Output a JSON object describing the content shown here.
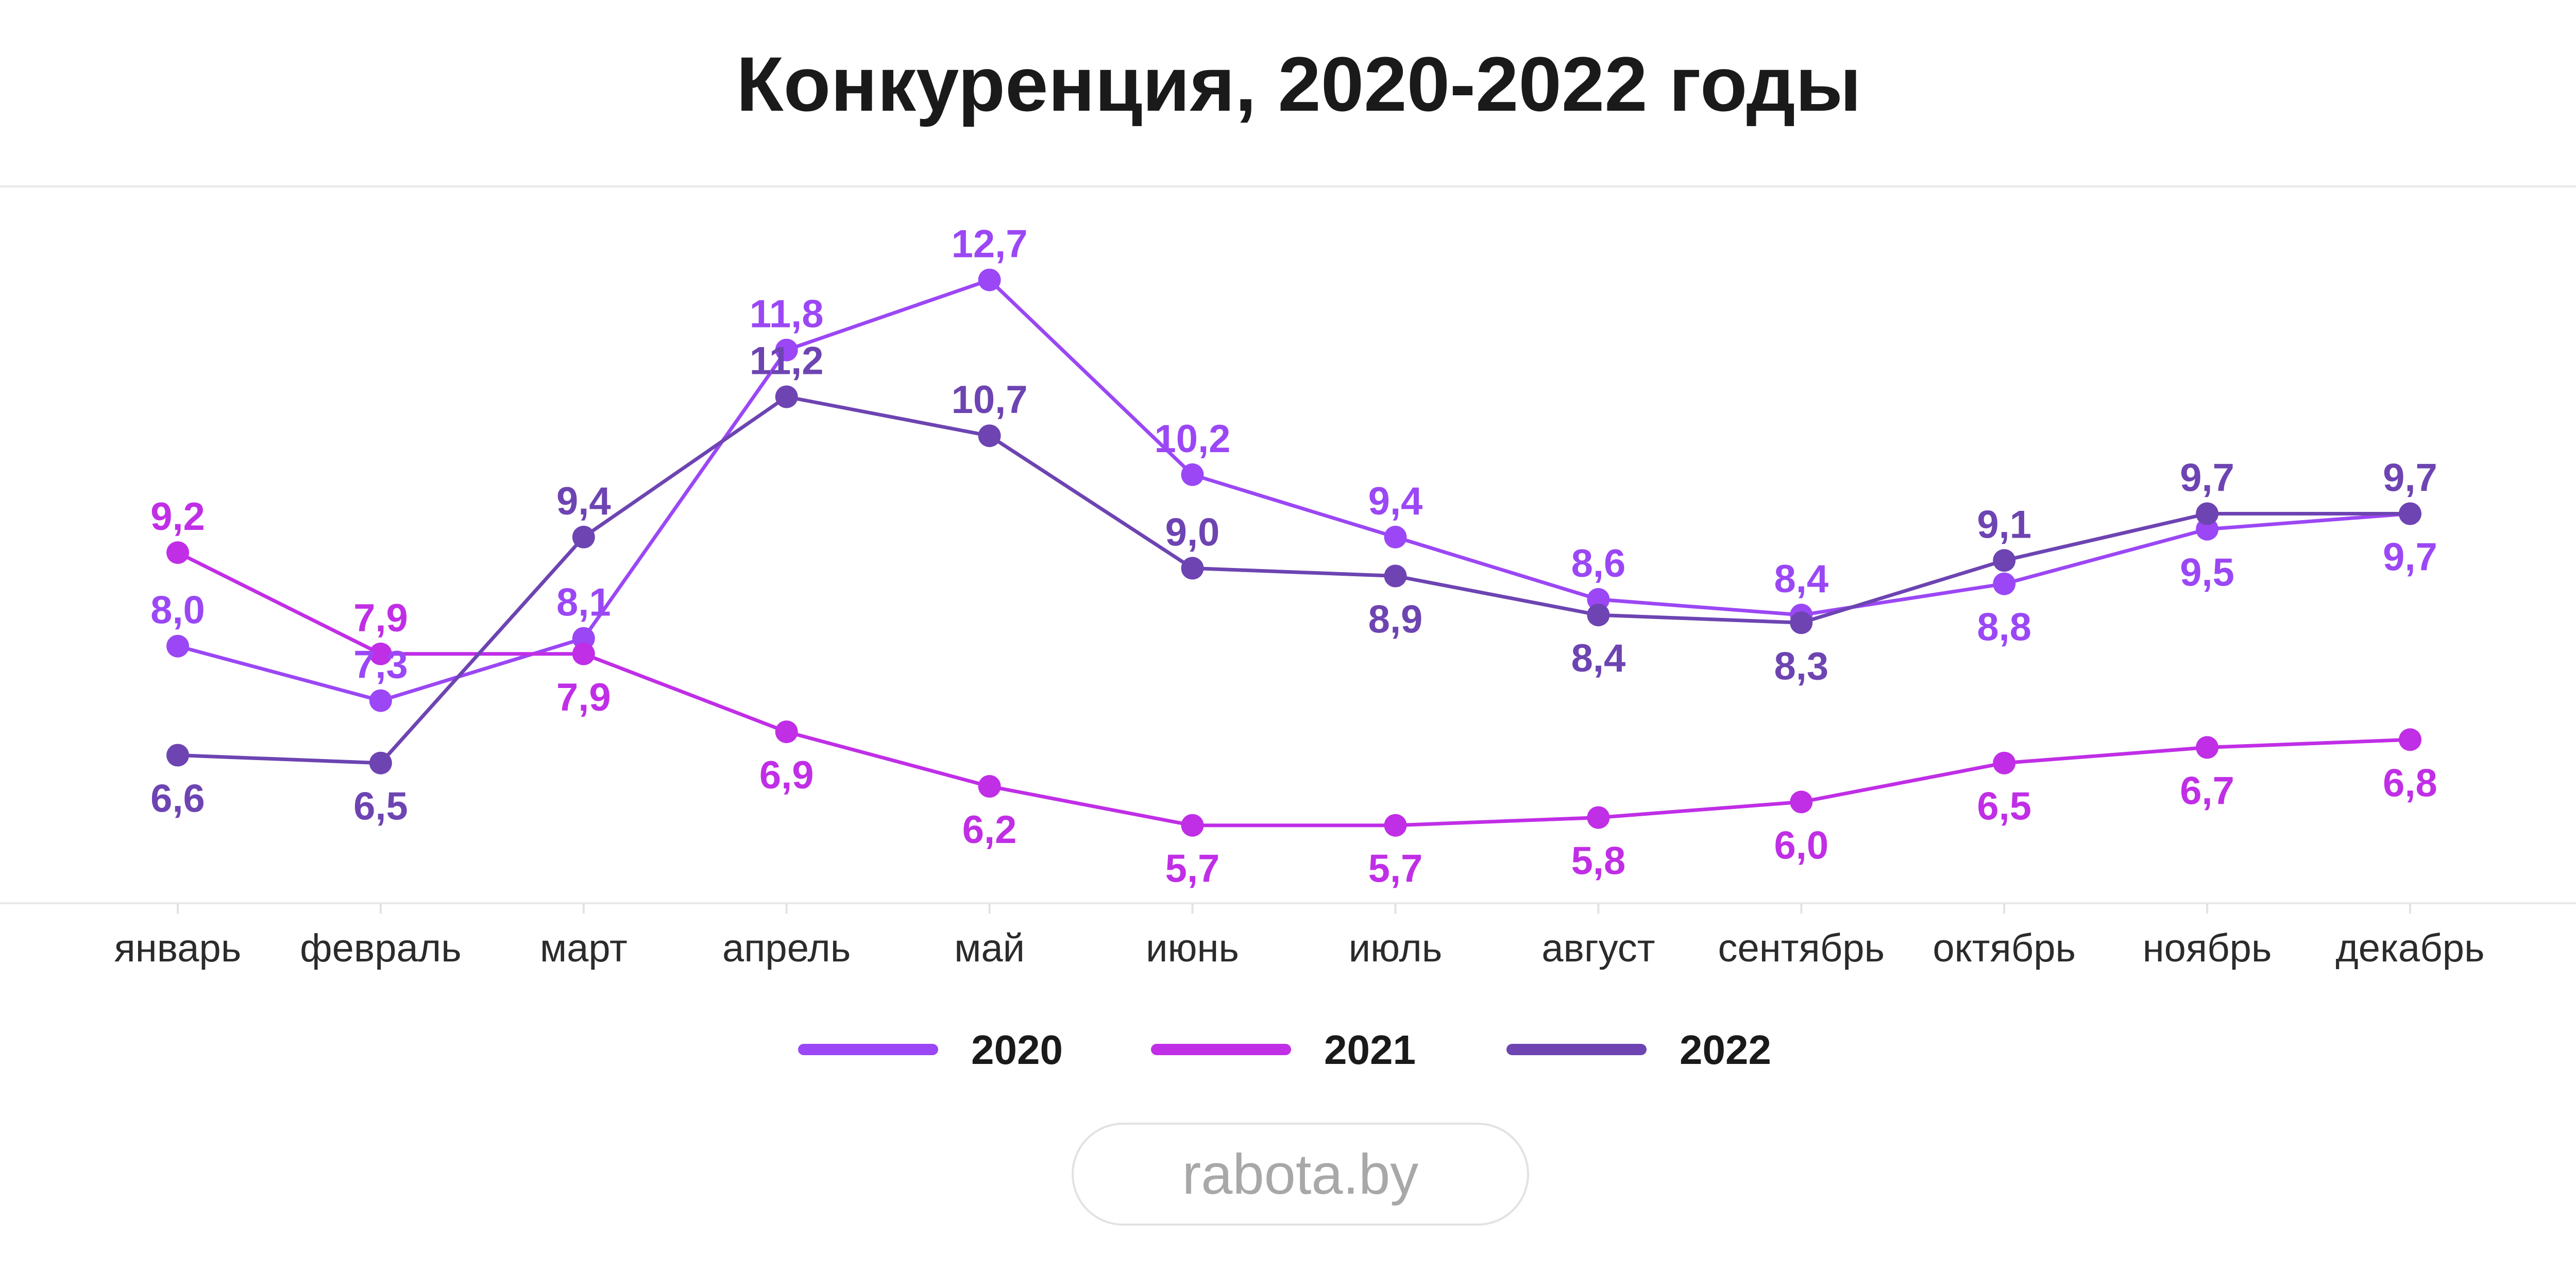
{
  "chart_data": {
    "type": "line",
    "title": "Конкуренция, 2020-2022 годы",
    "categories": [
      "январь",
      "февраль",
      "март",
      "апрель",
      "май",
      "июнь",
      "июль",
      "август",
      "сентябрь",
      "октябрь",
      "ноябрь",
      "декабрь"
    ],
    "series": [
      {
        "name": "2020",
        "color": "#9b47f5",
        "values": [
          8.0,
          7.3,
          8.1,
          11.8,
          12.7,
          10.2,
          9.4,
          8.6,
          8.4,
          8.8,
          9.5,
          9.7
        ],
        "labels": [
          "8,0",
          "7,3",
          "8,1",
          "11,8",
          "12,7",
          "10,2",
          "9,4",
          "8,6",
          "8,4",
          "8,8",
          "9,5",
          "9,7"
        ]
      },
      {
        "name": "2021",
        "color": "#c02ee6",
        "values": [
          9.2,
          7.9,
          7.9,
          6.9,
          6.2,
          5.7,
          5.7,
          5.8,
          6.0,
          6.5,
          6.7,
          6.8
        ],
        "labels": [
          "9,2",
          "7,9",
          "7,9",
          "6,9",
          "6,2",
          "5,7",
          "5,7",
          "5,8",
          "6,0",
          "6,5",
          "6,7",
          "6,8"
        ]
      },
      {
        "name": "2022",
        "color": "#6d44b2",
        "values": [
          6.6,
          6.5,
          9.4,
          11.2,
          10.7,
          9.0,
          8.9,
          8.4,
          8.3,
          9.1,
          9.7,
          9.7
        ],
        "labels": [
          "6,6",
          "6,5",
          "9,4",
          "11,2",
          "10,7",
          "9,0",
          "8,9",
          "8,4",
          "8,3",
          "9,1",
          "9,7",
          "9,7"
        ]
      }
    ],
    "ylim": [
      4.7,
      13.9
    ],
    "grid": false,
    "legend_position": "bottom",
    "xlabel": "",
    "ylabel": ""
  },
  "brand": {
    "text": "rabota.by"
  }
}
